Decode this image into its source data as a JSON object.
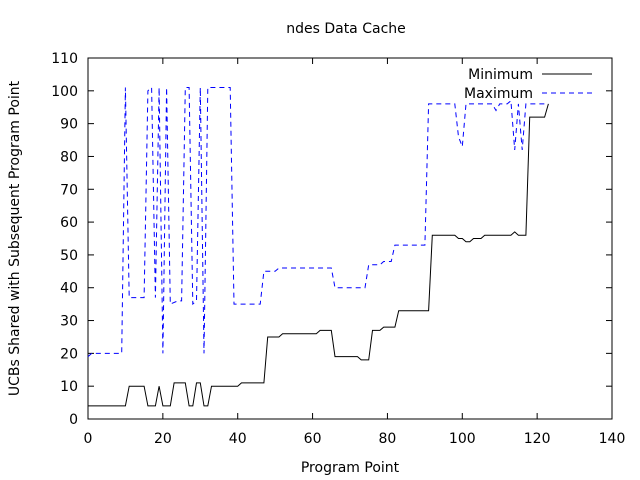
{
  "chart_data": {
    "type": "line",
    "title": "ndes Data Cache",
    "xlabel": "Program Point",
    "ylabel": "UCBs Shared with Subsequent Program Point",
    "xlim": [
      0,
      140
    ],
    "ylim": [
      0,
      110
    ],
    "xticks": [
      0,
      20,
      40,
      60,
      80,
      100,
      120,
      140
    ],
    "yticks": [
      0,
      10,
      20,
      30,
      40,
      50,
      60,
      70,
      80,
      90,
      100,
      110
    ],
    "grid": false,
    "legend_position": "top-right",
    "series": [
      {
        "name": "Minimum",
        "color": "#000000",
        "dash": "solid",
        "points": [
          [
            0,
            4
          ],
          [
            10,
            4
          ],
          [
            11,
            10
          ],
          [
            15,
            10
          ],
          [
            16,
            4
          ],
          [
            18,
            4
          ],
          [
            19,
            10
          ],
          [
            20,
            4
          ],
          [
            22,
            4
          ],
          [
            23,
            11
          ],
          [
            26,
            11
          ],
          [
            27,
            4
          ],
          [
            28,
            4
          ],
          [
            29,
            11
          ],
          [
            30,
            11
          ],
          [
            31,
            4
          ],
          [
            32,
            4
          ],
          [
            33,
            10
          ],
          [
            40,
            10
          ],
          [
            41,
            11
          ],
          [
            47,
            11
          ],
          [
            48,
            25
          ],
          [
            51,
            25
          ],
          [
            52,
            26
          ],
          [
            61,
            26
          ],
          [
            62,
            27
          ],
          [
            65,
            27
          ],
          [
            66,
            19
          ],
          [
            72,
            19
          ],
          [
            73,
            18
          ],
          [
            75,
            18
          ],
          [
            76,
            27
          ],
          [
            78,
            27
          ],
          [
            79,
            28
          ],
          [
            82,
            28
          ],
          [
            83,
            33
          ],
          [
            91,
            33
          ],
          [
            92,
            56
          ],
          [
            98,
            56
          ],
          [
            99,
            55
          ],
          [
            100,
            55
          ],
          [
            101,
            54
          ],
          [
            102,
            54
          ],
          [
            103,
            55
          ],
          [
            105,
            55
          ],
          [
            106,
            56
          ],
          [
            113,
            56
          ],
          [
            114,
            57
          ],
          [
            115,
            56
          ],
          [
            117,
            56
          ],
          [
            118,
            92
          ],
          [
            122,
            92
          ],
          [
            123,
            96
          ]
        ]
      },
      {
        "name": "Maximum",
        "color": "#0000ff",
        "dash": "dashed",
        "points": [
          [
            0,
            19
          ],
          [
            1,
            20
          ],
          [
            9,
            20
          ],
          [
            10,
            101
          ],
          [
            11,
            37
          ],
          [
            15,
            37
          ],
          [
            16,
            100
          ],
          [
            17,
            101
          ],
          [
            18,
            37
          ],
          [
            19,
            101
          ],
          [
            20,
            20
          ],
          [
            21,
            101
          ],
          [
            22,
            35
          ],
          [
            24,
            36
          ],
          [
            25,
            36
          ],
          [
            26,
            101
          ],
          [
            27,
            101
          ],
          [
            28,
            35
          ],
          [
            29,
            36
          ],
          [
            30,
            101
          ],
          [
            31,
            20
          ],
          [
            32,
            101
          ],
          [
            37,
            101
          ],
          [
            38,
            101
          ],
          [
            39,
            35
          ],
          [
            46,
            35
          ],
          [
            47,
            45
          ],
          [
            50,
            45
          ],
          [
            51,
            46
          ],
          [
            65,
            46
          ],
          [
            66,
            40
          ],
          [
            74,
            40
          ],
          [
            75,
            47
          ],
          [
            78,
            47
          ],
          [
            79,
            48
          ],
          [
            81,
            48
          ],
          [
            82,
            53
          ],
          [
            90,
            53
          ],
          [
            91,
            96
          ],
          [
            97,
            96
          ],
          [
            98,
            96
          ],
          [
            99,
            86
          ],
          [
            100,
            83
          ],
          [
            101,
            96
          ],
          [
            103,
            96
          ],
          [
            108,
            96
          ],
          [
            109,
            94
          ],
          [
            110,
            96
          ],
          [
            112,
            96
          ],
          [
            113,
            97
          ],
          [
            114,
            82
          ],
          [
            115,
            96
          ],
          [
            116,
            82
          ],
          [
            117,
            96
          ],
          [
            123,
            96
          ]
        ]
      }
    ]
  }
}
